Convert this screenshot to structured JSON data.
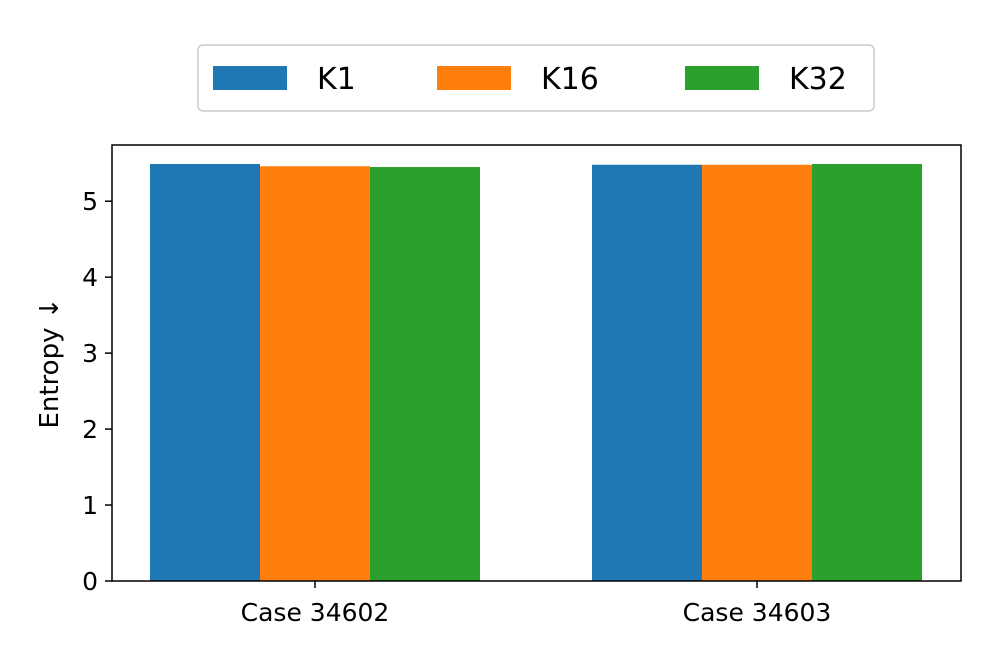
{
  "chart_data": {
    "type": "bar",
    "title": "",
    "xlabel": "",
    "ylabel": "Entropy ↓",
    "categories": [
      "Case 34602",
      "Case 34603"
    ],
    "series": [
      {
        "name": "K1",
        "values": [
          5.49,
          5.48
        ],
        "color": "#1f77b4"
      },
      {
        "name": "K16",
        "values": [
          5.46,
          5.48
        ],
        "color": "#ff7f0e"
      },
      {
        "name": "K32",
        "values": [
          5.45,
          5.49
        ],
        "color": "#2ca02c"
      }
    ],
    "ylim": [
      0,
      5.74
    ],
    "yticks": [
      0,
      1,
      2,
      3,
      4,
      5
    ],
    "grid": false,
    "legend_position": "top-center"
  }
}
